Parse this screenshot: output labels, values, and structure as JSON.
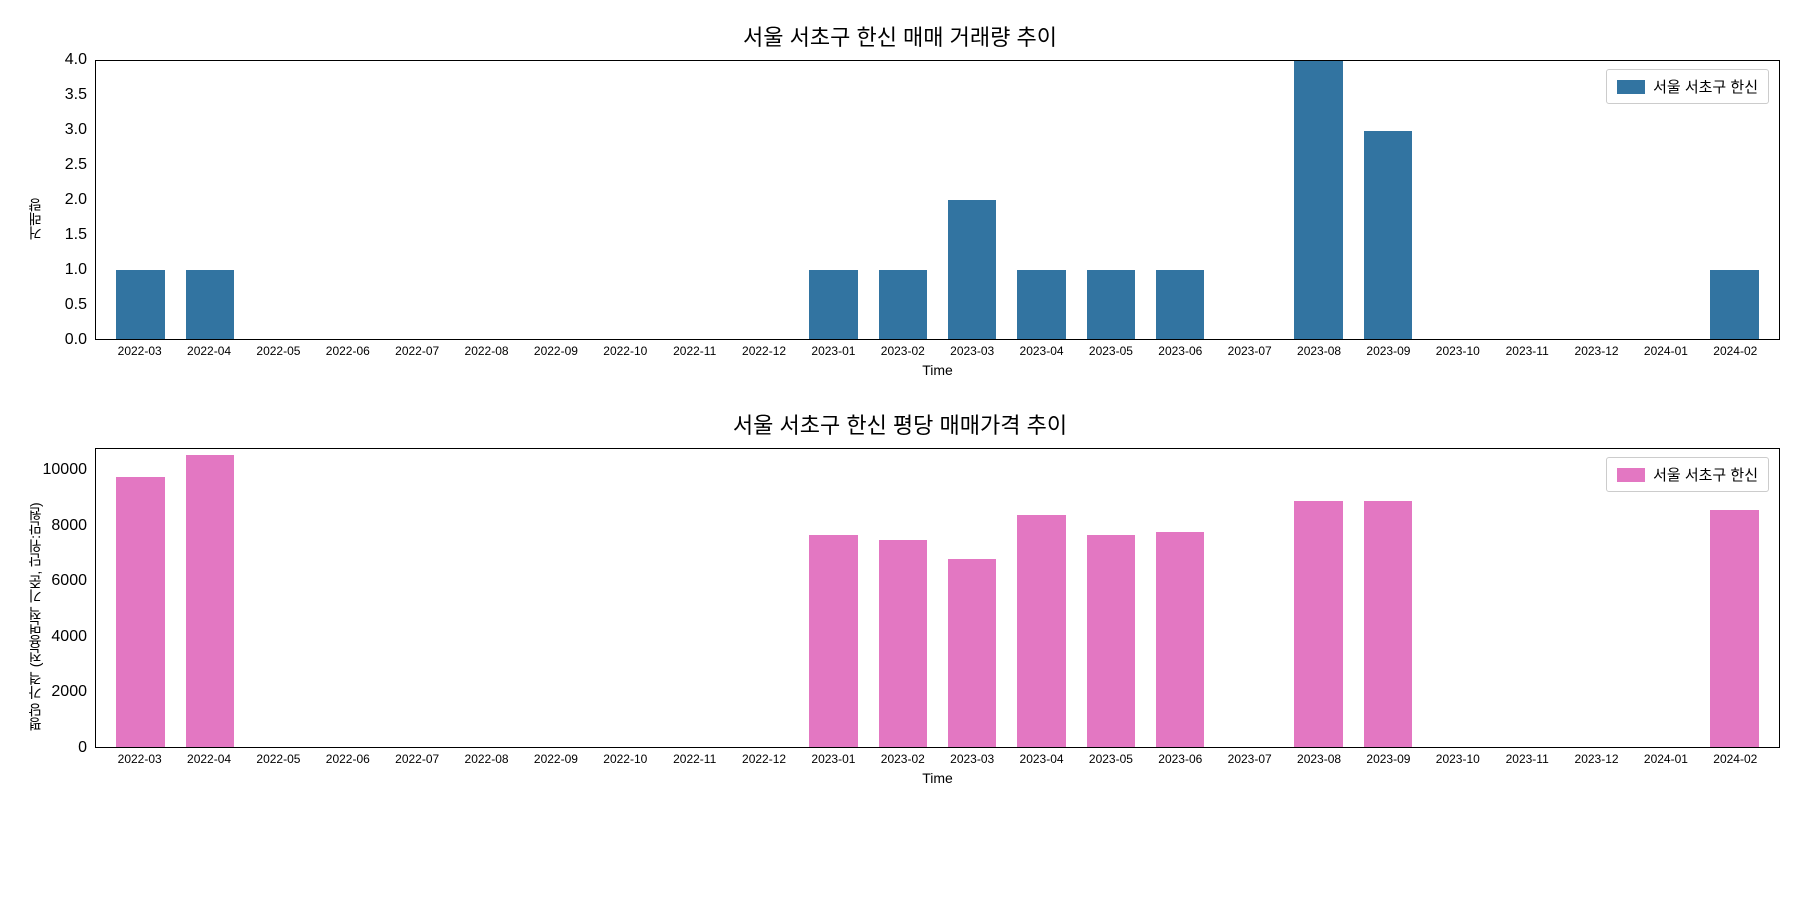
{
  "top_chart": {
    "type": "bar",
    "title": "서울 서초구 한신 매매 거래량 추이",
    "title_fontsize": 22,
    "xlabel": "Time",
    "ylabel": "거래량",
    "label_fontsize": 14,
    "legend_label": "서울 서초구 한신",
    "legend_position": "top-right",
    "bar_color": "#3274a1",
    "background_color": "#ffffff",
    "border_color": "#000000",
    "bar_width": 0.7,
    "ylim": [
      0,
      4.0
    ],
    "ytick_step": 0.5,
    "yticks": [
      "0.0",
      "0.5",
      "1.0",
      "1.5",
      "2.0",
      "2.5",
      "3.0",
      "3.5",
      "4.0"
    ],
    "categories": [
      "2022-03",
      "2022-04",
      "2022-05",
      "2022-06",
      "2022-07",
      "2022-08",
      "2022-09",
      "2022-10",
      "2022-11",
      "2022-12",
      "2023-01",
      "2023-02",
      "2023-03",
      "2023-04",
      "2023-05",
      "2023-06",
      "2023-07",
      "2023-08",
      "2023-09",
      "2023-10",
      "2023-11",
      "2023-12",
      "2024-01",
      "2024-02"
    ],
    "values": [
      1,
      1,
      0,
      0,
      0,
      0,
      0,
      0,
      0,
      0,
      1,
      1,
      2,
      1,
      1,
      1,
      0,
      4,
      3,
      0,
      0,
      0,
      0,
      1
    ],
    "tick_fontsize": 12
  },
  "bottom_chart": {
    "type": "bar",
    "title": "서울 서초구 한신 평당 매매가격 추이",
    "title_fontsize": 22,
    "xlabel": "Time",
    "ylabel": "평당 가격 (전용면적 기준, 단위:만원)",
    "label_fontsize": 14,
    "legend_label": "서울 서초구 한신",
    "legend_position": "top-right",
    "bar_color": "#e377c2",
    "background_color": "#ffffff",
    "border_color": "#000000",
    "bar_width": 0.7,
    "ylim": [
      0,
      10800
    ],
    "ytick_step": 2000,
    "yticks": [
      "0",
      "2000",
      "4000",
      "6000",
      "8000",
      "10000"
    ],
    "categories": [
      "2022-03",
      "2022-04",
      "2022-05",
      "2022-06",
      "2022-07",
      "2022-08",
      "2022-09",
      "2022-10",
      "2022-11",
      "2022-12",
      "2023-01",
      "2023-02",
      "2023-03",
      "2023-04",
      "2023-05",
      "2023-06",
      "2023-07",
      "2023-08",
      "2023-09",
      "2023-10",
      "2023-11",
      "2023-12",
      "2024-01",
      "2024-02"
    ],
    "values": [
      9800,
      10600,
      0,
      0,
      0,
      0,
      0,
      0,
      0,
      0,
      7700,
      7500,
      6800,
      8400,
      7700,
      7800,
      0,
      8900,
      8900,
      0,
      0,
      0,
      0,
      8600
    ],
    "tick_fontsize": 12
  }
}
